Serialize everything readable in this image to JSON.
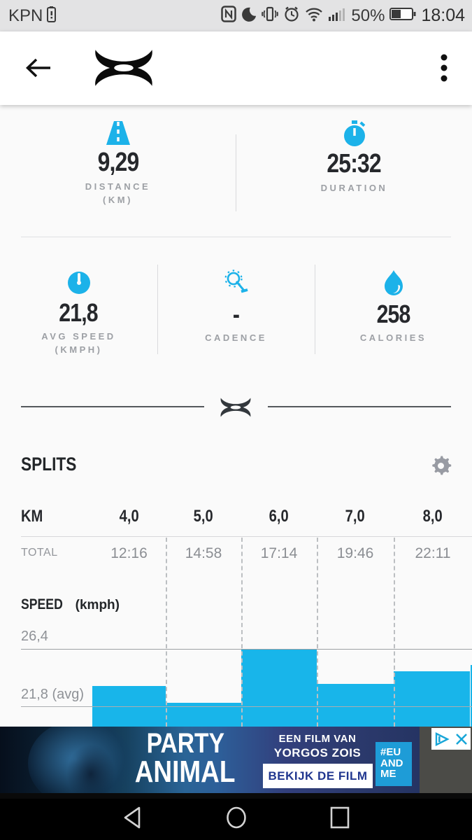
{
  "status_bar": {
    "carrier": "KPN",
    "battery_percent": "50%",
    "time": "18:04",
    "icons": [
      "sim-battery-icon",
      "nfc-icon",
      "do-not-disturb-moon-icon",
      "vibrate-icon",
      "alarm-icon",
      "wifi-icon",
      "signal-icon",
      "battery-icon"
    ]
  },
  "app_bar": {
    "logo": "under-armour-logo",
    "back": "back-arrow",
    "menu": "overflow-menu"
  },
  "stats_primary": [
    {
      "icon": "road-icon",
      "value": "9,29",
      "label_line1": "DISTANCE",
      "label_line2": "(KM)"
    },
    {
      "icon": "stopwatch-icon",
      "value": "25:32",
      "label_line1": "DURATION",
      "label_line2": ""
    }
  ],
  "stats_secondary": [
    {
      "icon": "speedometer-icon",
      "value": "21,8",
      "label_line1": "AVG SPEED",
      "label_line2": "(KMPH)"
    },
    {
      "icon": "cadence-icon",
      "value": "-",
      "label_line1": "CADENCE",
      "label_line2": ""
    },
    {
      "icon": "flame-icon",
      "value": "258",
      "label_line1": "CALORIES",
      "label_line2": ""
    }
  ],
  "splits": {
    "title": "SPLITS",
    "km_label": "KM",
    "total_label": "TOTAL",
    "speed_label": "SPEED",
    "speed_unit": "(kmph)",
    "gridline_label": "26,4",
    "avg_label": "21,8 (avg)"
  },
  "chart_data": {
    "type": "bar",
    "title": "SPEED (kmph)",
    "categories": [
      "4,0",
      "5,0",
      "6,0",
      "7,0",
      "8,0"
    ],
    "series": [
      {
        "name": "speed_kmph",
        "values": [
          23.4,
          22.1,
          26.4,
          23.6,
          24.6
        ]
      }
    ],
    "partial_next_value": 25.1,
    "totals_row": [
      "12:16",
      "14:58",
      "17:14",
      "19:46",
      "22:11"
    ],
    "avg": 21.8,
    "gridline": 26.4,
    "ylabel": "SPEED (kmph)",
    "xlabel": "KM",
    "grid_on": true,
    "legend": "none",
    "bar_color": "#18b5ea"
  },
  "ad": {
    "title_line1": "PARTY",
    "title_line2": "ANIMAL",
    "subtitle_line1": "EEN FILM VAN",
    "subtitle_line2": "YORGOS ZOIS",
    "cta": "BEKIJK DE FILM",
    "badge_line1": "#EU",
    "badge_line2": "AND",
    "badge_line3": "ME"
  },
  "colors": {
    "accent": "#18b5ea",
    "ad_cta_text": "#20368f",
    "ad_badge_bg": "#1e9cd7",
    "status_bg": "#e3e3e4"
  }
}
